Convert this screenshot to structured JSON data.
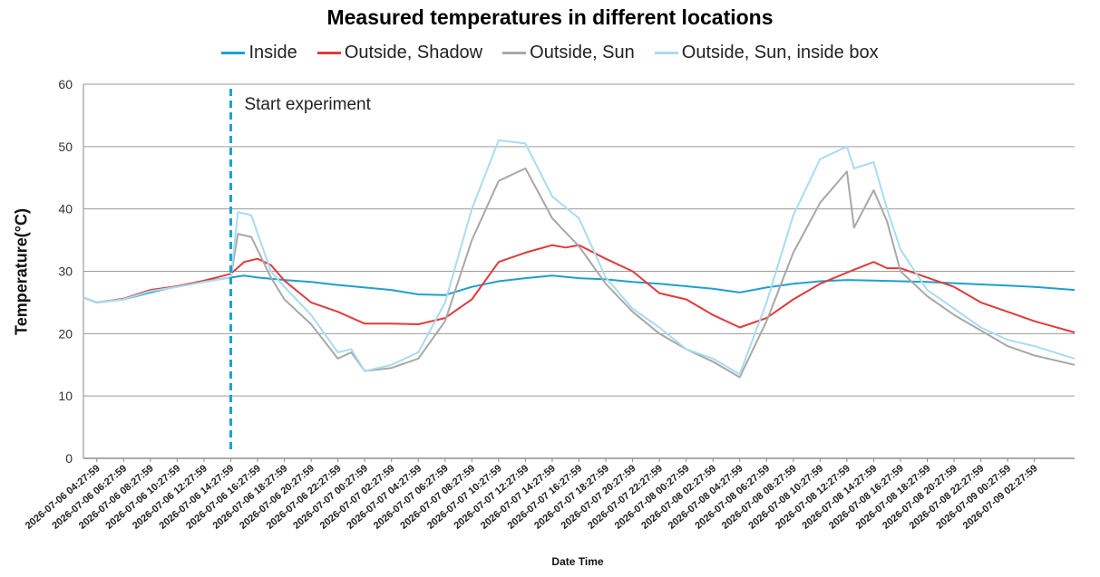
{
  "chart_data": {
    "type": "line",
    "title": "Measured temperatures in different locations",
    "xlabel": "Date Time",
    "ylabel": "Temperature(°C)",
    "ylim": [
      0,
      60
    ],
    "yticks": [
      0,
      10,
      20,
      30,
      40,
      50,
      60
    ],
    "grid": true,
    "legend_position": "top",
    "x_range": [
      "2026-07-06 03:27:59",
      "2026-07-09 05:27:59"
    ],
    "xticks": [
      "2026-07-06 04:27:59",
      "2026-07-06 06:27:59",
      "2026-07-06 08:27:59",
      "2026-07-06 10:27:59",
      "2026-07-06 12:27:59",
      "2026-07-06 14:27:59",
      "2026-07-06 16:27:59",
      "2026-07-06 18:27:59",
      "2026-07-06 20:27:59",
      "2026-07-06 22:27:59",
      "2026-07-07 00:27:59",
      "2026-07-07 02:27:59",
      "2026-07-07 04:27:59",
      "2026-07-07 06:27:59",
      "2026-07-07 08:27:59",
      "2026-07-07 10:27:59",
      "2026-07-07 12:27:59",
      "2026-07-07 14:27:59",
      "2026-07-07 16:27:59",
      "2026-07-07 18:27:59",
      "2026-07-07 20:27:59",
      "2026-07-07 22:27:59",
      "2026-07-08 00:27:59",
      "2026-07-08 02:27:59",
      "2026-07-08 04:27:59",
      "2026-07-08 06:27:59",
      "2026-07-08 08:27:59",
      "2026-07-08 10:27:59",
      "2026-07-08 12:27:59",
      "2026-07-08 14:27:59",
      "2026-07-08 16:27:59",
      "2026-07-08 18:27:59",
      "2026-07-08 20:27:59",
      "2026-07-08 22:27:59",
      "2026-07-09 00:27:59",
      "2026-07-09 02:27:59"
    ],
    "annotation": {
      "text": "Start experiment",
      "x": "2026-07-06 14:27:59",
      "color": "#1ba1d6"
    },
    "series": [
      {
        "name": "Inside",
        "color": "#1f9fd0",
        "points": [
          [
            "2026-07-06 03:27:59",
            25.8
          ],
          [
            "2026-07-06 04:27:59",
            25.0
          ],
          [
            "2026-07-06 06:27:59",
            25.5
          ],
          [
            "2026-07-06 08:27:59",
            26.6
          ],
          [
            "2026-07-06 10:27:59",
            27.6
          ],
          [
            "2026-07-06 12:27:59",
            28.4
          ],
          [
            "2026-07-06 14:27:59",
            29.0
          ],
          [
            "2026-07-06 15:27:59",
            29.3
          ],
          [
            "2026-07-06 16:27:59",
            29.0
          ],
          [
            "2026-07-06 18:27:59",
            28.6
          ],
          [
            "2026-07-06 20:27:59",
            28.3
          ],
          [
            "2026-07-06 22:27:59",
            27.8
          ],
          [
            "2026-07-07 00:27:59",
            27.4
          ],
          [
            "2026-07-07 02:27:59",
            27.0
          ],
          [
            "2026-07-07 04:27:59",
            26.3
          ],
          [
            "2026-07-07 06:27:59",
            26.2
          ],
          [
            "2026-07-07 08:27:59",
            27.5
          ],
          [
            "2026-07-07 10:27:59",
            28.4
          ],
          [
            "2026-07-07 12:27:59",
            28.9
          ],
          [
            "2026-07-07 14:27:59",
            29.3
          ],
          [
            "2026-07-07 16:27:59",
            28.9
          ],
          [
            "2026-07-07 18:27:59",
            28.7
          ],
          [
            "2026-07-07 20:27:59",
            28.3
          ],
          [
            "2026-07-07 22:27:59",
            28.0
          ],
          [
            "2026-07-08 00:27:59",
            27.6
          ],
          [
            "2026-07-08 02:27:59",
            27.2
          ],
          [
            "2026-07-08 04:27:59",
            26.6
          ],
          [
            "2026-07-08 06:27:59",
            27.4
          ],
          [
            "2026-07-08 08:27:59",
            28.0
          ],
          [
            "2026-07-08 10:27:59",
            28.4
          ],
          [
            "2026-07-08 12:27:59",
            28.6
          ],
          [
            "2026-07-08 14:27:59",
            28.5
          ],
          [
            "2026-07-08 16:27:59",
            28.4
          ],
          [
            "2026-07-08 18:27:59",
            28.3
          ],
          [
            "2026-07-08 20:27:59",
            28.1
          ],
          [
            "2026-07-08 22:27:59",
            27.9
          ],
          [
            "2026-07-09 00:27:59",
            27.7
          ],
          [
            "2026-07-09 02:27:59",
            27.5
          ],
          [
            "2026-07-09 05:27:59",
            27.0
          ]
        ]
      },
      {
        "name": "Outside, Shadow",
        "color": "#e03b3b",
        "points": [
          [
            "2026-07-06 03:27:59",
            25.8
          ],
          [
            "2026-07-06 04:27:59",
            25.0
          ],
          [
            "2026-07-06 06:27:59",
            25.6
          ],
          [
            "2026-07-06 08:27:59",
            27.0
          ],
          [
            "2026-07-06 10:27:59",
            27.6
          ],
          [
            "2026-07-06 12:27:59",
            28.5
          ],
          [
            "2026-07-06 14:27:59",
            29.6
          ],
          [
            "2026-07-06 15:27:59",
            31.5
          ],
          [
            "2026-07-06 16:27:59",
            32.0
          ],
          [
            "2026-07-06 17:27:59",
            31.0
          ],
          [
            "2026-07-06 18:27:59",
            28.5
          ],
          [
            "2026-07-06 20:27:59",
            25.0
          ],
          [
            "2026-07-06 22:27:59",
            23.5
          ],
          [
            "2026-07-07 00:27:59",
            21.6
          ],
          [
            "2026-07-07 02:27:59",
            21.6
          ],
          [
            "2026-07-07 04:27:59",
            21.5
          ],
          [
            "2026-07-07 06:27:59",
            22.5
          ],
          [
            "2026-07-07 08:27:59",
            25.5
          ],
          [
            "2026-07-07 10:27:59",
            31.5
          ],
          [
            "2026-07-07 12:27:59",
            33.0
          ],
          [
            "2026-07-07 14:27:59",
            34.2
          ],
          [
            "2026-07-07 15:27:59",
            33.8
          ],
          [
            "2026-07-07 16:27:59",
            34.2
          ],
          [
            "2026-07-07 18:27:59",
            32.0
          ],
          [
            "2026-07-07 20:27:59",
            30.0
          ],
          [
            "2026-07-07 22:27:59",
            26.5
          ],
          [
            "2026-07-08 00:27:59",
            25.5
          ],
          [
            "2026-07-08 02:27:59",
            23.0
          ],
          [
            "2026-07-08 04:27:59",
            21.0
          ],
          [
            "2026-07-08 06:27:59",
            22.5
          ],
          [
            "2026-07-08 08:27:59",
            25.5
          ],
          [
            "2026-07-08 10:27:59",
            28.0
          ],
          [
            "2026-07-08 12:27:59",
            29.8
          ],
          [
            "2026-07-08 14:27:59",
            31.5
          ],
          [
            "2026-07-08 15:27:59",
            30.5
          ],
          [
            "2026-07-08 16:27:59",
            30.5
          ],
          [
            "2026-07-08 18:27:59",
            29.0
          ],
          [
            "2026-07-08 20:27:59",
            27.5
          ],
          [
            "2026-07-08 22:27:59",
            25.0
          ],
          [
            "2026-07-09 00:27:59",
            23.5
          ],
          [
            "2026-07-09 02:27:59",
            22.0
          ],
          [
            "2026-07-09 05:27:59",
            20.2
          ]
        ]
      },
      {
        "name": "Outside, Sun",
        "color": "#a8a8a8",
        "points": [
          [
            "2026-07-06 03:27:59",
            25.8
          ],
          [
            "2026-07-06 04:27:59",
            25.0
          ],
          [
            "2026-07-06 06:27:59",
            25.5
          ],
          [
            "2026-07-06 08:27:59",
            26.8
          ],
          [
            "2026-07-06 10:27:59",
            27.5
          ],
          [
            "2026-07-06 12:27:59",
            28.3
          ],
          [
            "2026-07-06 14:27:59",
            29.0
          ],
          [
            "2026-07-06 15:00:00",
            36.0
          ],
          [
            "2026-07-06 16:00:00",
            35.5
          ],
          [
            "2026-07-06 17:27:59",
            29.0
          ],
          [
            "2026-07-06 18:27:59",
            25.5
          ],
          [
            "2026-07-06 20:27:59",
            21.5
          ],
          [
            "2026-07-06 22:27:59",
            16.0
          ],
          [
            "2026-07-06 23:27:59",
            17.0
          ],
          [
            "2026-07-07 00:27:59",
            14.0
          ],
          [
            "2026-07-07 02:27:59",
            14.5
          ],
          [
            "2026-07-07 04:27:59",
            16.0
          ],
          [
            "2026-07-07 06:27:59",
            22.0
          ],
          [
            "2026-07-07 08:27:59",
            35.0
          ],
          [
            "2026-07-07 10:27:59",
            44.5
          ],
          [
            "2026-07-07 12:27:59",
            46.5
          ],
          [
            "2026-07-07 14:27:59",
            38.5
          ],
          [
            "2026-07-07 16:27:59",
            34.0
          ],
          [
            "2026-07-07 18:27:59",
            28.0
          ],
          [
            "2026-07-07 20:27:59",
            23.5
          ],
          [
            "2026-07-07 22:27:59",
            20.0
          ],
          [
            "2026-07-08 00:27:59",
            17.5
          ],
          [
            "2026-07-08 02:27:59",
            15.5
          ],
          [
            "2026-07-08 04:27:59",
            13.0
          ],
          [
            "2026-07-08 06:27:59",
            22.0
          ],
          [
            "2026-07-08 08:27:59",
            33.0
          ],
          [
            "2026-07-08 10:27:59",
            41.0
          ],
          [
            "2026-07-08 12:27:59",
            46.0
          ],
          [
            "2026-07-08 13:00:00",
            37.0
          ],
          [
            "2026-07-08 14:27:59",
            43.0
          ],
          [
            "2026-07-08 15:27:59",
            38.0
          ],
          [
            "2026-07-08 16:27:59",
            30.0
          ],
          [
            "2026-07-08 18:27:59",
            26.0
          ],
          [
            "2026-07-08 20:27:59",
            23.0
          ],
          [
            "2026-07-08 22:27:59",
            20.5
          ],
          [
            "2026-07-09 00:27:59",
            18.0
          ],
          [
            "2026-07-09 02:27:59",
            16.5
          ],
          [
            "2026-07-09 05:27:59",
            15.0
          ]
        ]
      },
      {
        "name": "Outside, Sun, inside box",
        "color": "#a9dcef",
        "points": [
          [
            "2026-07-06 03:27:59",
            25.8
          ],
          [
            "2026-07-06 04:27:59",
            25.0
          ],
          [
            "2026-07-06 06:27:59",
            25.5
          ],
          [
            "2026-07-06 08:27:59",
            26.8
          ],
          [
            "2026-07-06 10:27:59",
            27.5
          ],
          [
            "2026-07-06 12:27:59",
            28.3
          ],
          [
            "2026-07-06 14:27:59",
            29.0
          ],
          [
            "2026-07-06 15:00:00",
            39.5
          ],
          [
            "2026-07-06 16:00:00",
            39.0
          ],
          [
            "2026-07-06 17:27:59",
            30.0
          ],
          [
            "2026-07-06 18:27:59",
            27.5
          ],
          [
            "2026-07-06 20:27:59",
            23.0
          ],
          [
            "2026-07-06 22:27:59",
            17.0
          ],
          [
            "2026-07-06 23:27:59",
            17.5
          ],
          [
            "2026-07-07 00:27:59",
            14.0
          ],
          [
            "2026-07-07 02:27:59",
            15.0
          ],
          [
            "2026-07-07 04:27:59",
            17.0
          ],
          [
            "2026-07-07 06:27:59",
            25.0
          ],
          [
            "2026-07-07 08:27:59",
            40.0
          ],
          [
            "2026-07-07 10:27:59",
            51.0
          ],
          [
            "2026-07-07 12:27:59",
            50.5
          ],
          [
            "2026-07-07 14:27:59",
            42.0
          ],
          [
            "2026-07-07 16:27:59",
            38.5
          ],
          [
            "2026-07-07 18:27:59",
            29.0
          ],
          [
            "2026-07-07 20:27:59",
            24.0
          ],
          [
            "2026-07-07 22:27:59",
            21.0
          ],
          [
            "2026-07-08 00:27:59",
            17.5
          ],
          [
            "2026-07-08 02:27:59",
            16.0
          ],
          [
            "2026-07-08 04:27:59",
            13.5
          ],
          [
            "2026-07-08 06:27:59",
            25.0
          ],
          [
            "2026-07-08 08:27:59",
            39.0
          ],
          [
            "2026-07-08 10:27:59",
            48.0
          ],
          [
            "2026-07-08 12:27:59",
            50.0
          ],
          [
            "2026-07-08 13:00:00",
            46.5
          ],
          [
            "2026-07-08 14:27:59",
            47.5
          ],
          [
            "2026-07-08 15:27:59",
            40.0
          ],
          [
            "2026-07-08 16:27:59",
            33.5
          ],
          [
            "2026-07-08 18:27:59",
            27.0
          ],
          [
            "2026-07-08 20:27:59",
            24.0
          ],
          [
            "2026-07-08 22:27:59",
            21.0
          ],
          [
            "2026-07-09 00:27:59",
            19.0
          ],
          [
            "2026-07-09 02:27:59",
            18.0
          ],
          [
            "2026-07-09 05:27:59",
            16.0
          ]
        ]
      }
    ]
  }
}
